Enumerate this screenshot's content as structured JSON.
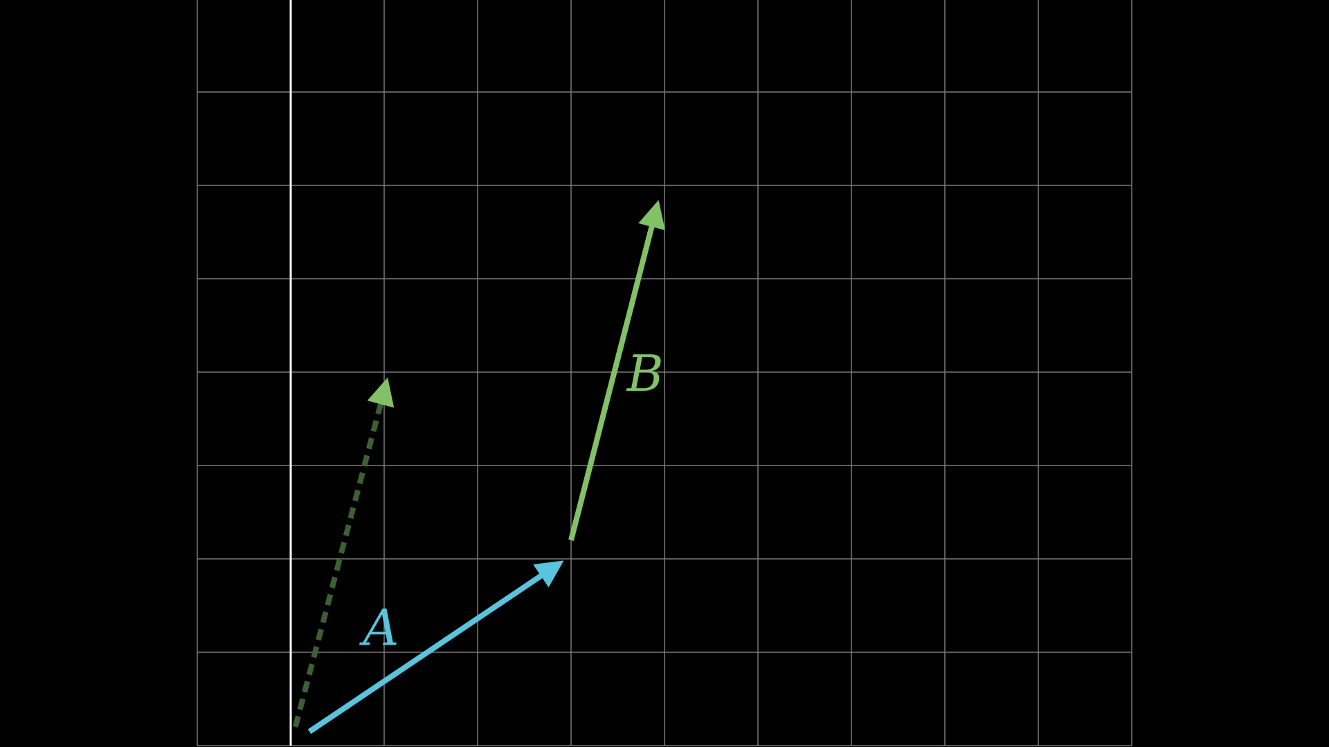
{
  "colors": {
    "background": "#000000",
    "grid": "#7a7a7a",
    "axis": "#ffffff",
    "vector_a": "#58c4dd",
    "vector_b": "#83c167",
    "vector_b_ghost": "#3e5f33"
  },
  "grid": {
    "x_range": [
      -1,
      9
    ],
    "y_range": [
      0,
      8
    ],
    "step": 1,
    "y_axis_at_x": 0
  },
  "vectors": {
    "a": {
      "label": "A",
      "tail": [
        0.2,
        0.15
      ],
      "tip": [
        2.8,
        1.9
      ],
      "style": "solid"
    },
    "b": {
      "label": "B",
      "tail": [
        3.0,
        2.2
      ],
      "tip": [
        3.9,
        5.7
      ],
      "style": "solid"
    },
    "b_ghost": {
      "label": "",
      "tail": [
        0.05,
        0.2
      ],
      "tip": [
        1.0,
        3.8
      ],
      "style": "dashed"
    }
  }
}
